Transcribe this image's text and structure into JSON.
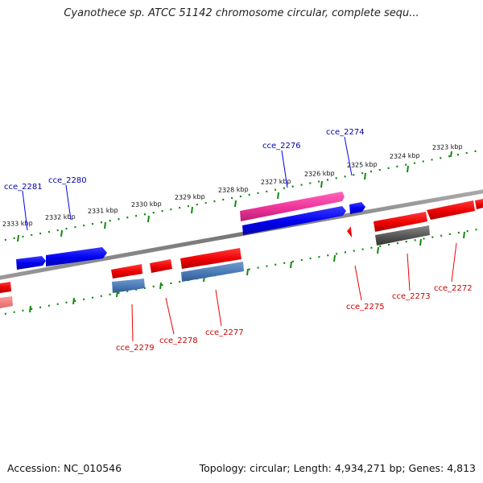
{
  "title": "Cyanothece sp. ATCC 51142 chromosome circular, complete sequ...",
  "footer": {
    "accession": "Accession: NC_010546",
    "summary": "Topology: circular; Length: 4,934,271 bp; Genes: 4,813"
  },
  "colors": {
    "forward_gene": "#0000ee",
    "reverse_gene": "#ee0000",
    "forward_highlight": "#ee3399",
    "reverse_highlight": "#4a7ab5",
    "forward_label": "#0000aa",
    "reverse_label": "#cc0000",
    "tick": "#118811",
    "backbone": "#888888"
  },
  "kbp_labels": [
    "2323 kbp",
    "2324 kbp",
    "2325 kbp",
    "2326 kbp",
    "2327 kbp",
    "2328 kbp",
    "2329 kbp",
    "2330 kbp",
    "2331 kbp",
    "2332 kbp",
    "2333 kbp"
  ],
  "gene_labels": {
    "forward": [
      "cce_2274",
      "cce_2276",
      "cce_2280",
      "cce_2281"
    ],
    "reverse": [
      "cce_2272",
      "cce_2273",
      "cce_2275",
      "cce_2277",
      "cce_2278",
      "cce_2279"
    ]
  }
}
